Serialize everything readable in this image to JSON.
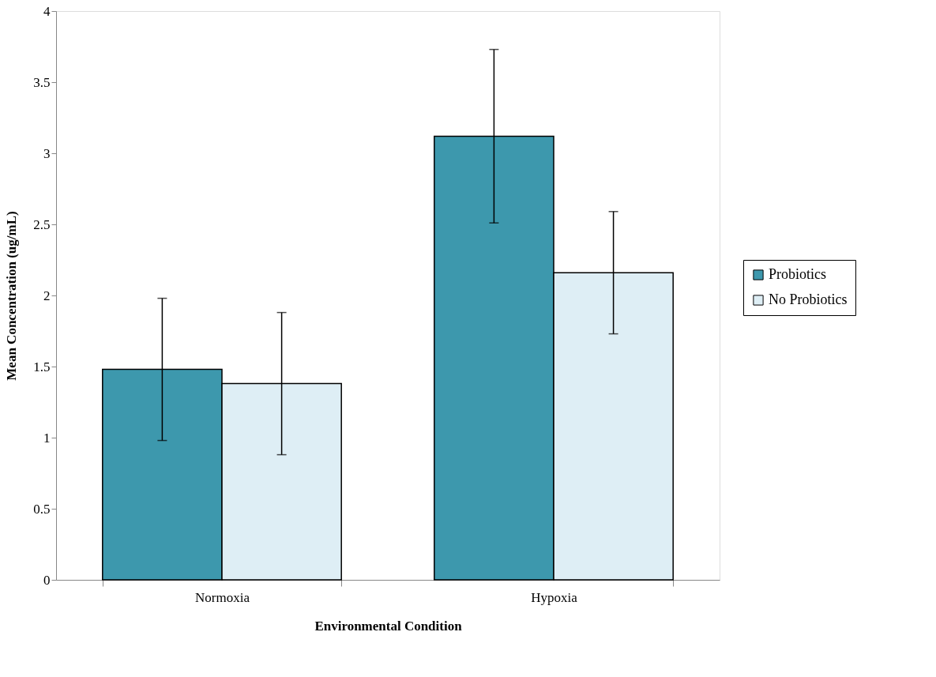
{
  "chart_data": {
    "type": "bar",
    "xlabel": "Environmental Condition",
    "ylabel": "Mean Concentration (ug/mL)",
    "categories": [
      "Normoxia",
      "Hypoxia"
    ],
    "series": [
      {
        "name": "Probiotics",
        "color": "#3d98ad",
        "values": [
          1.48,
          3.12
        ],
        "errors": [
          0.5,
          0.61
        ]
      },
      {
        "name": "No Probiotics",
        "color": "#deeef5",
        "values": [
          1.38,
          2.16
        ],
        "errors": [
          0.5,
          0.43
        ]
      }
    ],
    "ylim": [
      0,
      4
    ],
    "yticks": [
      0,
      0.5,
      1,
      1.5,
      2,
      2.5,
      3,
      3.5,
      4
    ],
    "grid": false,
    "legend": "right"
  }
}
